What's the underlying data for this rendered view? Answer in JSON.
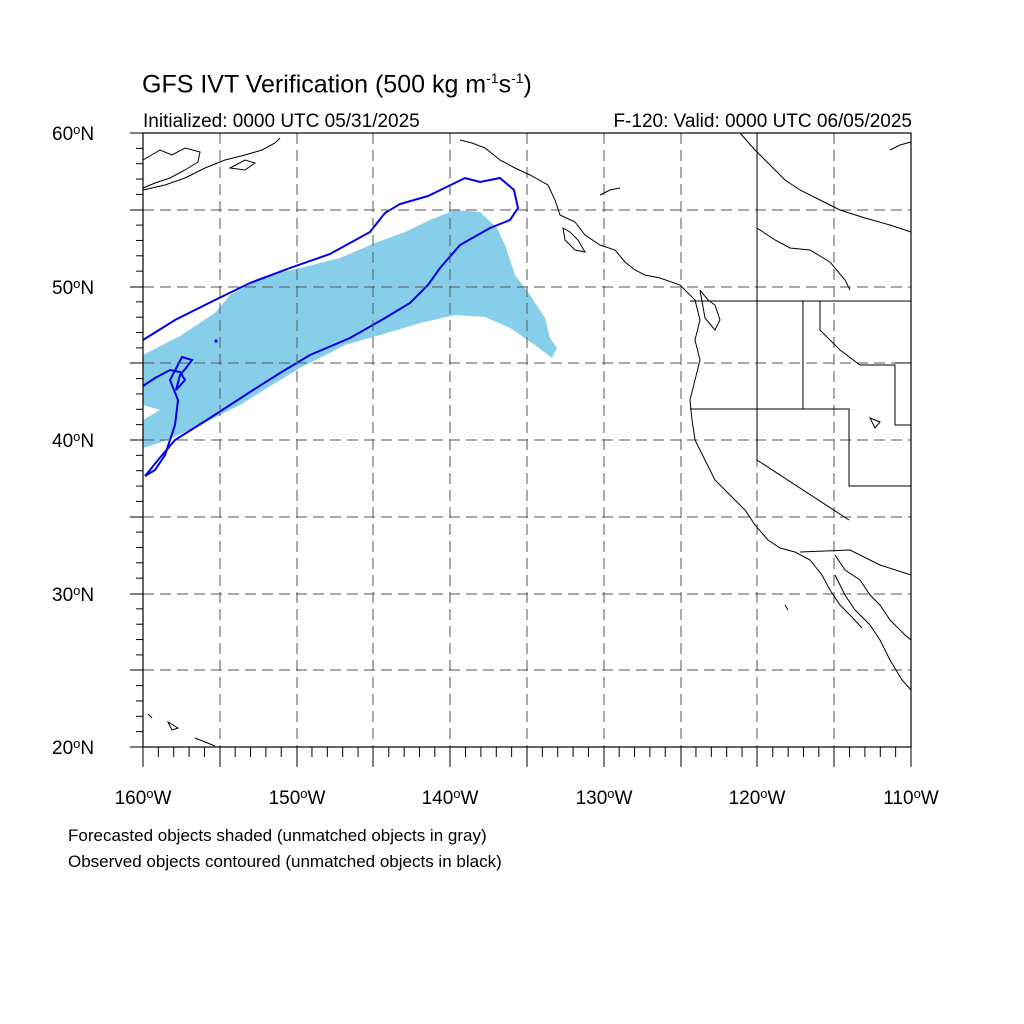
{
  "title": {
    "prefix": "GFS IVT Verification (500 kg m",
    "sup1": "-1",
    "mid": "s",
    "sup2": "-1",
    "suffix": ")"
  },
  "initialized": "Initialized: 0000 UTC 05/31/2025",
  "valid": "F-120: Valid: 0000 UTC 06/05/2025",
  "lat_labels": [
    {
      "num": "60",
      "hemi": "N"
    },
    {
      "num": "50",
      "hemi": "N"
    },
    {
      "num": "40",
      "hemi": "N"
    },
    {
      "num": "30",
      "hemi": "N"
    },
    {
      "num": "20",
      "hemi": "N"
    }
  ],
  "lon_labels": [
    {
      "num": "160",
      "hemi": "W"
    },
    {
      "num": "150",
      "hemi": "W"
    },
    {
      "num": "140",
      "hemi": "W"
    },
    {
      "num": "130",
      "hemi": "W"
    },
    {
      "num": "120",
      "hemi": "W"
    },
    {
      "num": "110",
      "hemi": "W"
    }
  ],
  "degree_symbol": "o",
  "notes": [
    "Forecasted objects shaded (unmatched objects in gray)",
    "Observed objects contoured (unmatched objects in black)"
  ],
  "colors": {
    "forecast_fill": "#87ceeb",
    "observed_contour": "#0000ee",
    "coastline": "#000000",
    "grid": "#555555"
  }
}
